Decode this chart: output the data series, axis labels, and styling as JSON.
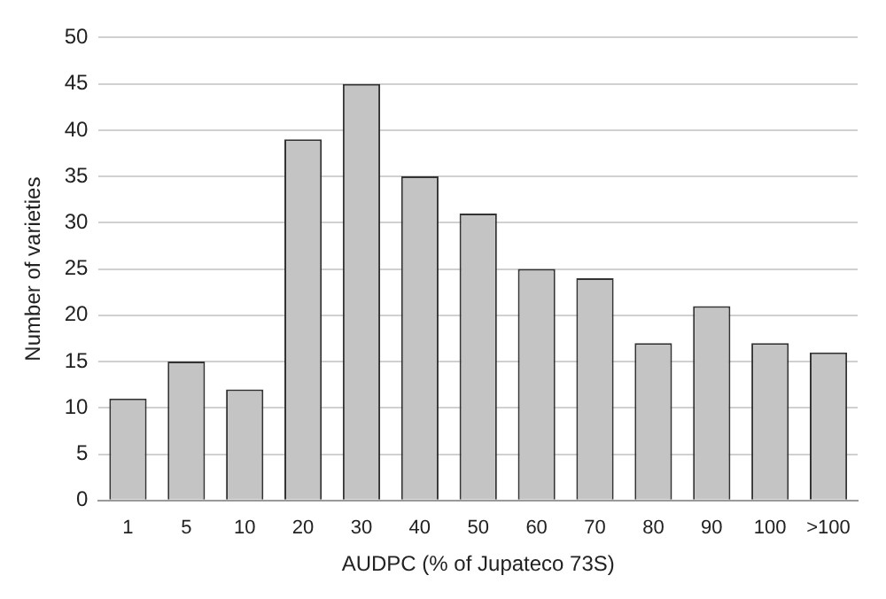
{
  "chart_data": {
    "type": "bar",
    "xlabel": "AUDPC (% of Jupateco 73S)",
    "ylabel": "Number of varieties",
    "categories": [
      "1",
      "5",
      "10",
      "20",
      "30",
      "40",
      "50",
      "60",
      "70",
      "80",
      "90",
      "100",
      ">100"
    ],
    "values": [
      11,
      15,
      12,
      39,
      45,
      35,
      31,
      25,
      24,
      17,
      21,
      17,
      16
    ],
    "color": "#c4c4c4",
    "ylim": [
      0,
      50
    ],
    "yticks": [
      0,
      5,
      10,
      15,
      20,
      25,
      30,
      35,
      40,
      45,
      50
    ],
    "grid": "y",
    "legend": false
  }
}
